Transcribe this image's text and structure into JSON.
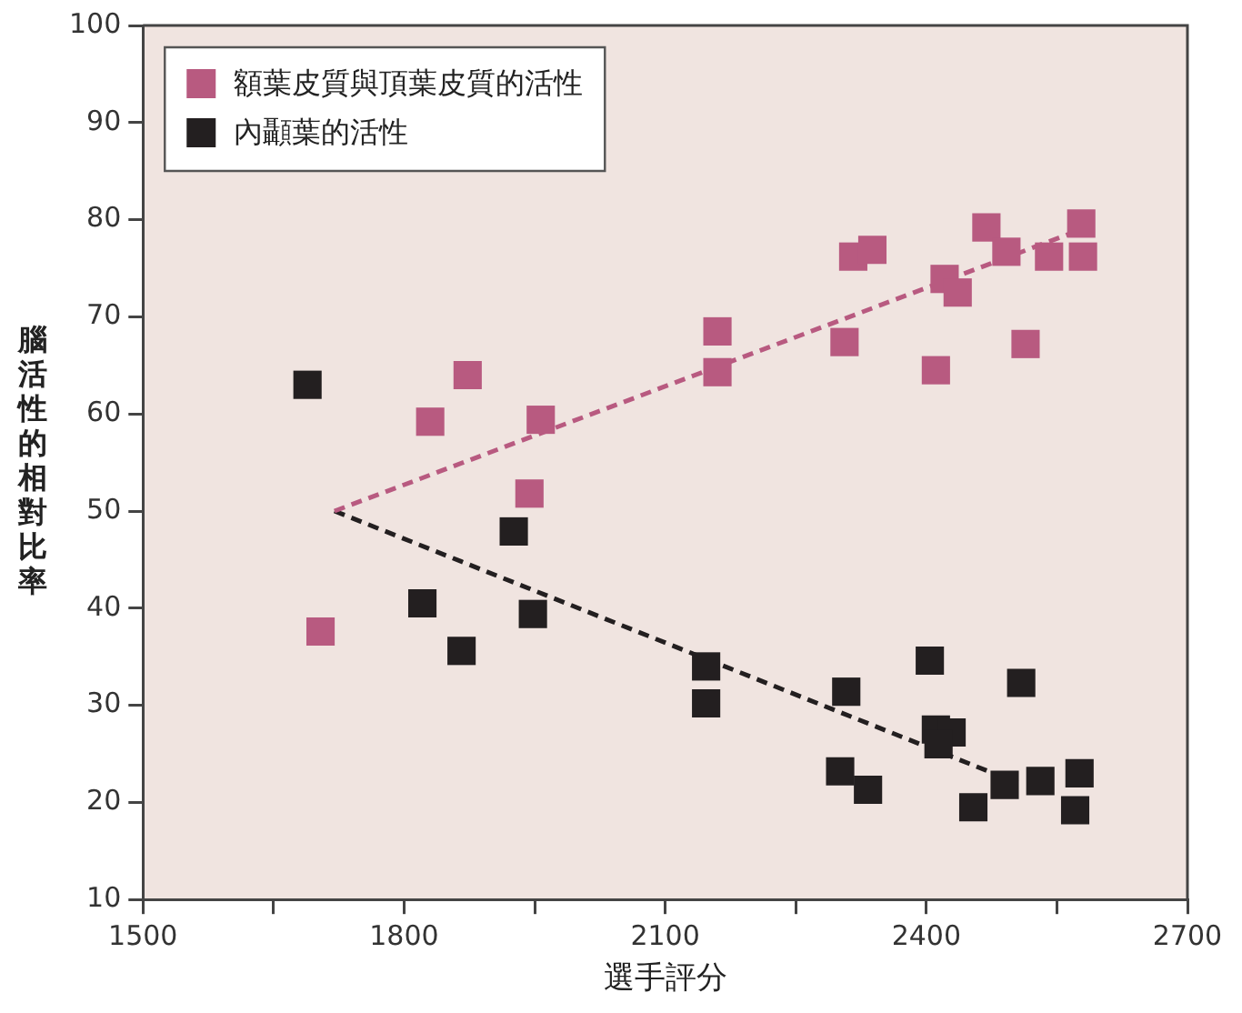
{
  "chart_data": {
    "type": "scatter",
    "xlabel": "選手評分",
    "ylabel": "腦活性的相對比率",
    "xlim": [
      1500,
      2700
    ],
    "xticks": [
      1500,
      {
        "value": 1650,
        "label": null
      },
      1800,
      {
        "value": 1950,
        "label": null
      },
      2100,
      {
        "value": 2250,
        "label": null
      },
      2400,
      {
        "value": 2550,
        "label": null
      },
      2700
    ],
    "ylim": [
      10,
      100
    ],
    "yticks": [
      10,
      20,
      30,
      40,
      50,
      60,
      70,
      80,
      90,
      100
    ],
    "grid": false,
    "legend": "top left",
    "marker": "square",
    "series": [
      {
        "name": "額葉皮質與頂葉皮質的活性",
        "color": "#b85a80",
        "x": [
          1704,
          1830,
          1873,
          1944,
          1957,
          2160,
          2160,
          2306,
          2316,
          2338,
          2411,
          2421,
          2436,
          2469,
          2492,
          2514,
          2541,
          2578,
          2580
        ],
        "values": [
          37.6,
          59.2,
          64.0,
          51.8,
          59.4,
          68.5,
          64.3,
          67.4,
          76.2,
          76.9,
          64.5,
          73.9,
          72.5,
          79.2,
          76.7,
          67.2,
          76.2,
          79.6,
          76.2
        ]
      },
      {
        "name": "內顳葉的活性",
        "color": "#231f20",
        "x": [
          1689,
          1821,
          1866,
          1926,
          1948,
          2147,
          2147,
          2308,
          2301,
          2333,
          2404,
          2411,
          2429,
          2414,
          2454,
          2490,
          2509,
          2531,
          2576,
          2571
        ],
        "values": [
          63.0,
          40.5,
          35.6,
          47.9,
          39.4,
          34.0,
          30.2,
          31.4,
          23.2,
          21.3,
          34.6,
          27.5,
          27.2,
          26.0,
          19.5,
          21.8,
          32.3,
          22.2,
          23.0,
          19.2
        ]
      },
      {
        "type": "line",
        "marker": "none",
        "color": "#b85a80",
        "line_style": "dashed",
        "x": [
          1720,
          2578
        ],
        "values": [
          50,
          79
        ]
      },
      {
        "type": "line",
        "marker": "none",
        "color": "#231f20",
        "line_style": "dashed",
        "x": [
          1720,
          2505
        ],
        "values": [
          50,
          22
        ]
      }
    ]
  }
}
